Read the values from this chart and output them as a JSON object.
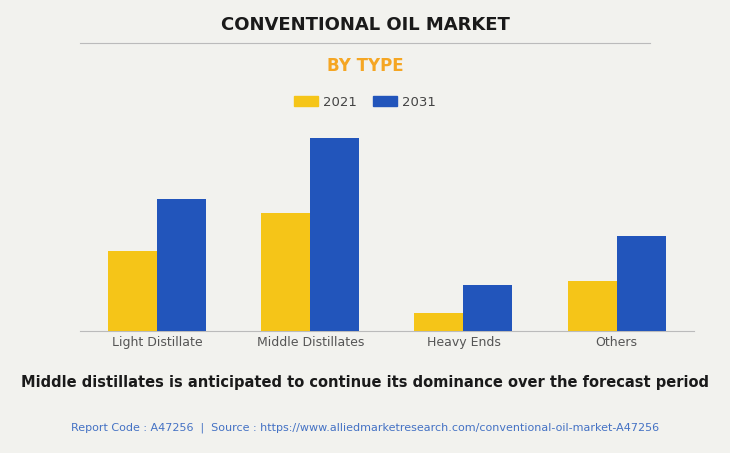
{
  "title": "CONVENTIONAL OIL MARKET",
  "subtitle": "BY TYPE",
  "categories": [
    "Light Distillate",
    "Middle Distillates",
    "Heavy Ends",
    "Others"
  ],
  "values_2021": [
    35,
    52,
    8,
    22
  ],
  "values_2031": [
    58,
    85,
    20,
    42
  ],
  "color_2021": "#F5C518",
  "color_2031": "#2255BB",
  "legend_labels": [
    "2021",
    "2031"
  ],
  "background_color": "#F2F2EE",
  "plot_bg_color": "#F2F2EE",
  "title_fontsize": 13,
  "subtitle_fontsize": 12,
  "subtitle_color": "#F5A623",
  "footer_text": "Middle distillates is anticipated to continue its dominance over the forecast period",
  "source_text": "Report Code : A47256  |  Source : https://www.alliedmarketresearch.com/conventional-oil-market-A47256",
  "source_color": "#4472C4",
  "footer_fontsize": 10.5,
  "source_fontsize": 8,
  "tick_label_fontsize": 9,
  "bar_width": 0.32,
  "ylim": [
    0,
    100
  ],
  "grid_color": "#CCCCCC"
}
